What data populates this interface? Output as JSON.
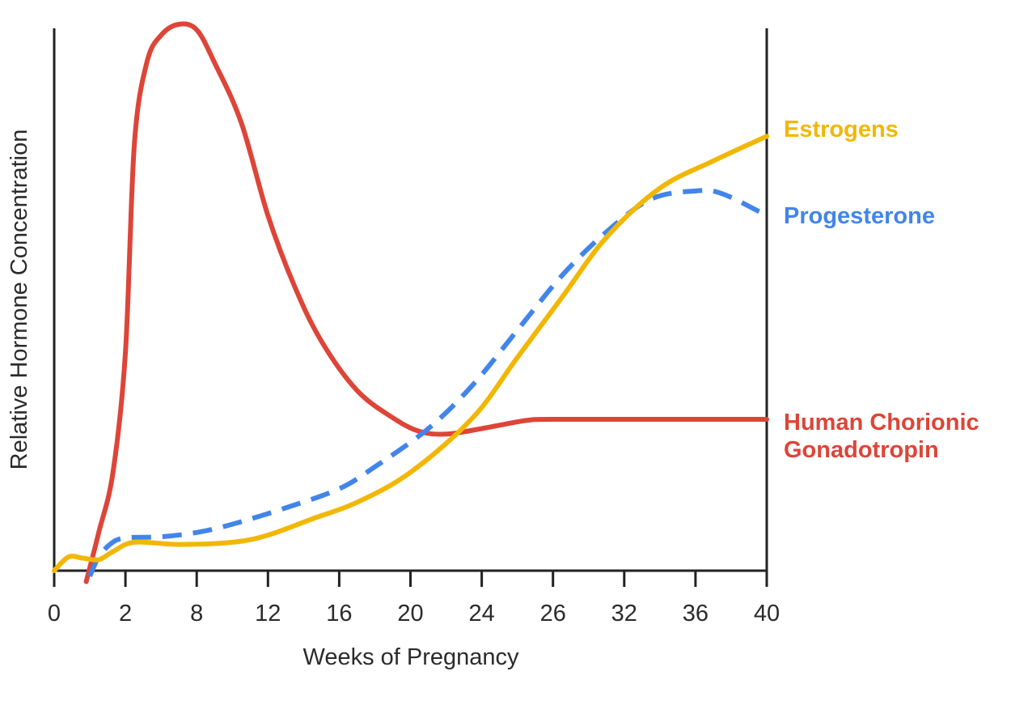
{
  "chart_data": {
    "type": "line",
    "title": "",
    "xlabel": "Weeks of Pregnancy",
    "ylabel": "Relative Hormone Concentration",
    "x_tick_labels": [
      "0",
      "2",
      "8",
      "12",
      "16",
      "20",
      "24",
      "26",
      "32",
      "36",
      "40"
    ],
    "ylim": [
      0,
      100
    ],
    "grid": false,
    "legend_placement": "right",
    "series": [
      {
        "name": "Human Chorionic Gonadotropin",
        "label_lines": [
          "Human Chorionic",
          "Gonadotropin"
        ],
        "color": "#dd4538",
        "style": "solid",
        "points": [
          [
            1.8,
            -2
          ],
          [
            2.5,
            7
          ],
          [
            3.3,
            18
          ],
          [
            4.0,
            40
          ],
          [
            4.5,
            78
          ],
          [
            5.2,
            93
          ],
          [
            6.0,
            98
          ],
          [
            7.0,
            100
          ],
          [
            8.0,
            99
          ],
          [
            9.0,
            93
          ],
          [
            10.5,
            82
          ],
          [
            12.0,
            65
          ],
          [
            13.5,
            52
          ],
          [
            15.0,
            42
          ],
          [
            17.0,
            33
          ],
          [
            19.0,
            28
          ],
          [
            20.5,
            25.5
          ],
          [
            22.0,
            25
          ],
          [
            24.0,
            26
          ],
          [
            26.5,
            27.5
          ],
          [
            28.0,
            27.7
          ],
          [
            33.0,
            27.7
          ],
          [
            40.0,
            27.7
          ]
        ]
      },
      {
        "name": "Estrogens",
        "label_lines": [
          "Estrogens"
        ],
        "color": "#f2b705",
        "style": "solid",
        "points": [
          [
            0.0,
            0
          ],
          [
            0.8,
            2.5
          ],
          [
            1.6,
            2.3
          ],
          [
            2.5,
            2.0
          ],
          [
            3.3,
            3.5
          ],
          [
            4.5,
            5.2
          ],
          [
            7.0,
            4.8
          ],
          [
            10.0,
            5.2
          ],
          [
            12.0,
            6.5
          ],
          [
            14.5,
            9.5
          ],
          [
            17.0,
            12.5
          ],
          [
            20.0,
            18
          ],
          [
            23.5,
            28
          ],
          [
            26.0,
            39
          ],
          [
            28.5,
            50
          ],
          [
            31.0,
            61
          ],
          [
            34.0,
            70
          ],
          [
            37.0,
            75
          ],
          [
            40.0,
            79.5
          ]
        ]
      },
      {
        "name": "Progesterone",
        "label_lines": [
          "Progesterone"
        ],
        "color": "#4285ea",
        "style": "dashed",
        "points": [
          [
            2.0,
            -1
          ],
          [
            2.5,
            2.5
          ],
          [
            3.2,
            5
          ],
          [
            4.0,
            6
          ],
          [
            6.0,
            6.2
          ],
          [
            8.0,
            7
          ],
          [
            10.0,
            8.5
          ],
          [
            13.0,
            11.5
          ],
          [
            16.0,
            15
          ],
          [
            18.0,
            19
          ],
          [
            21.0,
            26
          ],
          [
            23.5,
            34
          ],
          [
            26.0,
            44
          ],
          [
            28.5,
            54
          ],
          [
            31.0,
            62
          ],
          [
            33.5,
            68
          ],
          [
            36.0,
            69.5
          ],
          [
            37.5,
            69
          ],
          [
            40.0,
            65
          ]
        ]
      }
    ]
  }
}
